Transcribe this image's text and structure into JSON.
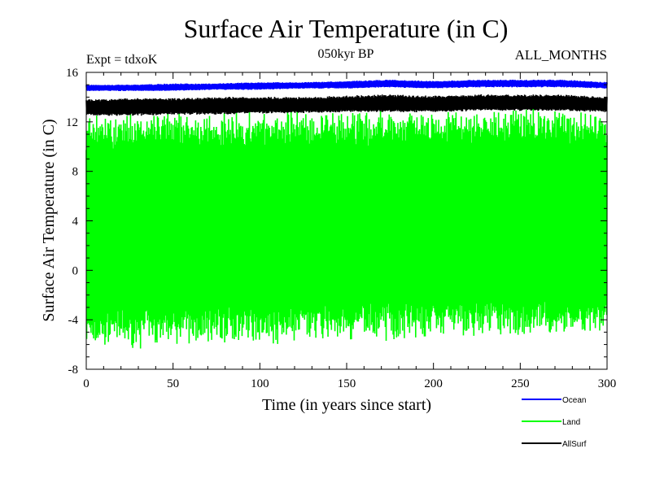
{
  "chart_data": {
    "type": "line",
    "title": "Surface Air Temperature (in C)",
    "subtitle": "050kyr BP",
    "experiment_label": "Expt = tdxoK",
    "months_label": "ALL_MONTHS",
    "xlabel": "Time (in years since start)",
    "ylabel": "Surface Air Temperature (in C)",
    "xlim": [
      0,
      300
    ],
    "ylim": [
      -8,
      16
    ],
    "x_ticks": [
      0,
      50,
      100,
      150,
      200,
      250,
      300
    ],
    "y_ticks": [
      -8,
      -4,
      0,
      4,
      8,
      12,
      16
    ],
    "x_tick_labels": [
      "0",
      "50",
      "100",
      "150",
      "200",
      "250",
      "300"
    ],
    "y_tick_labels": [
      "-8",
      "-4",
      "0",
      "4",
      "8",
      "12",
      "16"
    ],
    "grid": false,
    "legend_position": "bottom-right",
    "series": [
      {
        "name": "Ocean",
        "color": "#0000ff",
        "x": [
          0,
          25,
          50,
          75,
          100,
          125,
          150,
          175,
          200,
          225,
          250,
          275,
          300
        ],
        "y_low": [
          14.5,
          14.5,
          14.5,
          14.6,
          14.6,
          14.7,
          14.7,
          14.8,
          14.7,
          14.8,
          14.8,
          14.8,
          14.7
        ],
        "y_high": [
          15.0,
          15.0,
          15.1,
          15.1,
          15.2,
          15.2,
          15.3,
          15.4,
          15.3,
          15.4,
          15.4,
          15.4,
          15.2
        ]
      },
      {
        "name": "Land",
        "color": "#00ff00",
        "x": [
          0,
          25,
          50,
          75,
          100,
          125,
          150,
          175,
          200,
          225,
          250,
          275,
          300
        ],
        "y_low": [
          -5.8,
          -5.9,
          -5.7,
          -5.6,
          -5.6,
          -5.5,
          -5.4,
          -5.3,
          -5.2,
          -5.1,
          -5.1,
          -5.0,
          -5.2
        ],
        "y_high": [
          12.2,
          12.3,
          12.4,
          12.4,
          12.5,
          12.6,
          12.6,
          12.7,
          12.8,
          12.7,
          12.8,
          12.8,
          12.8
        ]
      },
      {
        "name": "AllSurf",
        "color": "#000000",
        "x": [
          0,
          25,
          50,
          75,
          100,
          125,
          150,
          175,
          200,
          225,
          250,
          275,
          300
        ],
        "y_low": [
          12.5,
          12.5,
          12.6,
          12.6,
          12.7,
          12.7,
          12.8,
          12.8,
          12.8,
          12.9,
          12.9,
          12.9,
          12.8
        ],
        "y_high": [
          13.8,
          13.9,
          13.9,
          14.0,
          14.0,
          14.0,
          14.1,
          14.2,
          14.1,
          14.2,
          14.2,
          14.2,
          14.0
        ]
      }
    ]
  }
}
